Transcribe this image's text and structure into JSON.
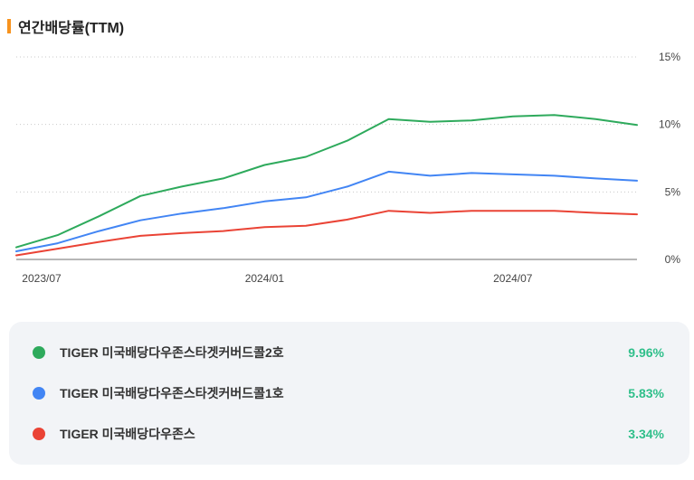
{
  "header": {
    "title": "연간배당률(TTM)",
    "accent_color": "#f7931e"
  },
  "chart_data": {
    "type": "line",
    "title": "연간배당률(TTM)",
    "xlabel": "",
    "ylabel": "",
    "x": [
      "2023-07",
      "2023-08",
      "2023-09",
      "2023-10",
      "2023-11",
      "2023-12",
      "2024-01",
      "2024-02",
      "2024-03",
      "2024-04",
      "2024-05",
      "2024-06",
      "2024-07",
      "2024-08",
      "2024-09",
      "2024-10"
    ],
    "x_tick_labels": [
      {
        "x": "2023-07",
        "label": "2023/07"
      },
      {
        "x": "2024-01",
        "label": "2024/01"
      },
      {
        "x": "2024-07",
        "label": "2024/07"
      }
    ],
    "y_ticks": [
      {
        "value": 0,
        "label": "0%"
      },
      {
        "value": 5,
        "label": "5%"
      },
      {
        "value": 10,
        "label": "10%"
      },
      {
        "value": 15,
        "label": "15%"
      }
    ],
    "ylim": [
      0,
      15
    ],
    "grid": true,
    "series": [
      {
        "name": "TIGER 미국배당다우존스타겟커버드콜2호",
        "color": "#2eaa5c",
        "values": [
          0.9,
          1.8,
          3.2,
          4.7,
          5.4,
          6.0,
          7.0,
          7.6,
          8.8,
          10.4,
          10.2,
          10.3,
          10.6,
          10.7,
          10.4,
          9.96
        ]
      },
      {
        "name": "TIGER 미국배당다우존스타겟커버드콜1호",
        "color": "#4285f4",
        "values": [
          0.6,
          1.2,
          2.1,
          2.9,
          3.4,
          3.8,
          4.3,
          4.6,
          5.4,
          6.5,
          6.2,
          6.4,
          6.3,
          6.2,
          6.0,
          5.83
        ]
      },
      {
        "name": "TIGER 미국배당다우존스",
        "color": "#ea4335",
        "values": [
          0.3,
          0.8,
          1.3,
          1.75,
          1.95,
          2.1,
          2.4,
          2.5,
          2.95,
          3.6,
          3.45,
          3.6,
          3.6,
          3.6,
          3.45,
          3.34
        ]
      }
    ]
  },
  "legend": {
    "items": [
      {
        "name": "TIGER 미국배당다우존스타겟커버드콜2호",
        "value": "9.96%",
        "color": "#2eaa5c"
      },
      {
        "name": "TIGER 미국배당다우존스타겟커버드콜1호",
        "value": "5.83%",
        "color": "#4285f4"
      },
      {
        "name": "TIGER 미국배당다우존스",
        "value": "3.34%",
        "color": "#ea4335"
      }
    ],
    "value_color": "#2fbf8a"
  }
}
